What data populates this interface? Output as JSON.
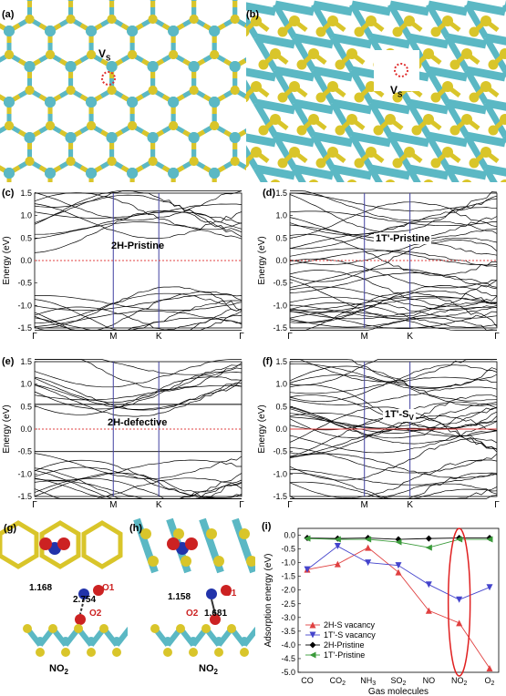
{
  "panels": {
    "a": {
      "label": "(a)",
      "vacancy_label": "V",
      "vacancy_sub": "S"
    },
    "b": {
      "label": "(b)",
      "vacancy_label": "V",
      "vacancy_sub": "S"
    },
    "c": {
      "label": "(c)",
      "title": "2H-Pristine"
    },
    "d": {
      "label": "(d)",
      "title": "1T'-Pristine"
    },
    "e": {
      "label": "(e)",
      "title": "2H-defective"
    },
    "f": {
      "label": "(f)",
      "title": "1T'-S",
      "title_sub": "V"
    },
    "g": {
      "label": "(g)",
      "bond1": "1.168",
      "bond2": "2.754",
      "atom1": "O1",
      "atom2": "O2",
      "molecule": "NO",
      "molecule_sub": "2"
    },
    "h": {
      "label": "(h)",
      "bond1": "1.158",
      "bond2": "1.681",
      "atom1": "O1",
      "atom2": "O2",
      "molecule": "NO",
      "molecule_sub": "2"
    },
    "i": {
      "label": "(i)"
    }
  },
  "band_axes": {
    "ylabel": "Energy (eV)",
    "yticks": [
      "1.5",
      "1.0",
      "0.5",
      "0.0",
      "-0.5",
      "-1.0",
      "-1.5"
    ],
    "xticks": [
      "Γ",
      "M",
      "K",
      "Γ"
    ]
  },
  "colors": {
    "s_atom": "#d9c52a",
    "mo_atom": "#5bb8c4",
    "n_atom": "#2233aa",
    "o_atom": "#cc2222",
    "kline": "#4040a0",
    "fermi": "#e04040"
  },
  "chart_data": {
    "type": "line",
    "categories": [
      "CO",
      "CO2",
      "NH3",
      "SO2",
      "NO",
      "NO2",
      "O2"
    ],
    "category_display": [
      [
        "CO",
        ""
      ],
      [
        "CO",
        "2"
      ],
      [
        "NH",
        "3"
      ],
      [
        "SO",
        "2"
      ],
      [
        "NO",
        ""
      ],
      [
        "NO",
        "2"
      ],
      [
        "O",
        "2"
      ]
    ],
    "xlabel": "Gas molecules",
    "ylabel": "Adsorption energy (eV)",
    "ylim": [
      -5.0,
      0.25
    ],
    "yticks": [
      "0.0",
      "-0.5",
      "-1.0",
      "-1.5",
      "-2.0",
      "-2.5",
      "-3.0",
      "-3.5",
      "-4.0",
      "-4.5",
      "-5.0"
    ],
    "series": [
      {
        "name": "2H-S vacancy",
        "color": "#e04040",
        "marker": "triangle-up",
        "values": [
          -1.25,
          -1.05,
          -0.45,
          -1.35,
          -2.75,
          -3.2,
          -4.85
        ]
      },
      {
        "name": "1T'-S vacancy",
        "color": "#4444cc",
        "marker": "triangle-down",
        "values": [
          -1.25,
          -0.4,
          -1.0,
          -1.1,
          -1.8,
          -2.35,
          -1.9
        ]
      },
      {
        "name": "2H-Pristine",
        "color": "#000000",
        "marker": "diamond",
        "values": [
          -0.1,
          -0.12,
          -0.1,
          -0.15,
          -0.12,
          -0.1,
          -0.1
        ]
      },
      {
        "name": "1T'-Pristine",
        "color": "#3a9a3a",
        "marker": "triangle-left",
        "values": [
          -0.12,
          -0.15,
          -0.15,
          -0.25,
          -0.45,
          -0.15,
          -0.15
        ]
      }
    ],
    "annotation": "red ellipse around NO2"
  }
}
